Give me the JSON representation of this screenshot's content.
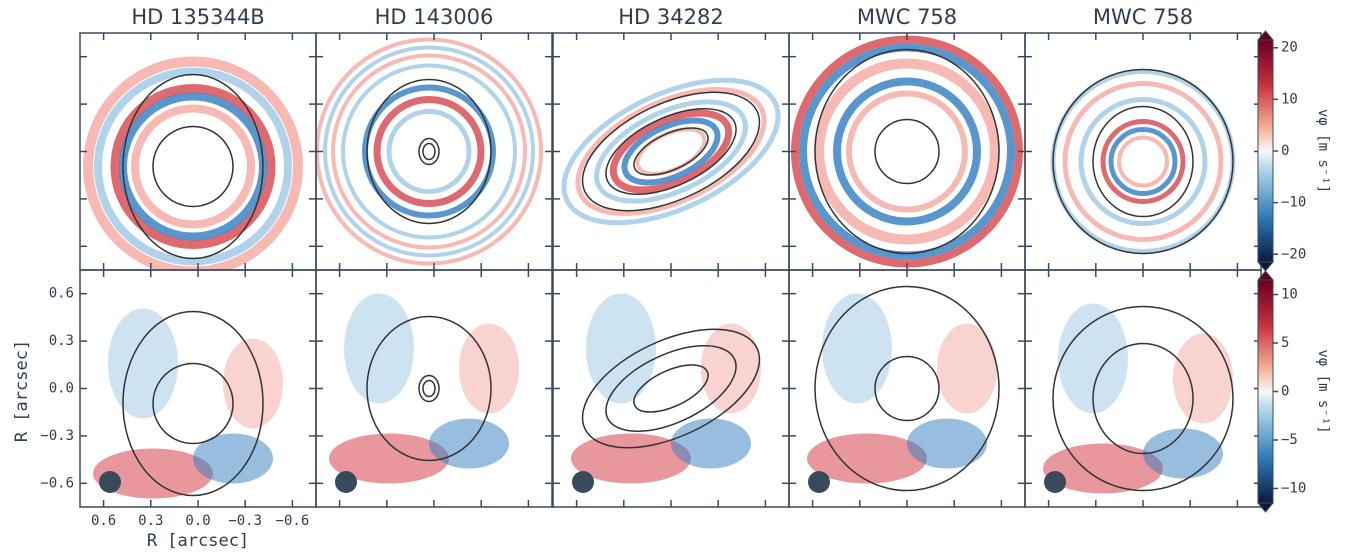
{
  "figure": {
    "panel_titles": [
      "HD 135344B",
      "HD 143006",
      "HD 34282",
      "MWC 758",
      "MWC 758"
    ],
    "xlabel": "R [arcsec]",
    "ylabel": "R [arcsec]",
    "xlim": [
      0.75,
      -0.75
    ],
    "ylim": [
      -0.75,
      0.75
    ],
    "xticks": [
      0.6,
      0.3,
      {
        "value": 0,
        "label": "0.0"
      },
      {
        "value": -0.3,
        "label": "−0.3"
      },
      {
        "value": -0.6,
        "label": "−0.6"
      }
    ],
    "yticks": [
      0.6,
      0.3,
      {
        "value": 0,
        "label": "0.0"
      },
      {
        "value": -0.3,
        "label": "−0.3"
      },
      {
        "value": -0.6,
        "label": "−0.6"
      }
    ],
    "colorbars": [
      {
        "label": "vφ [m s⁻¹]",
        "lim": [
          -21.5,
          21.5
        ],
        "ticks": [
          20,
          10,
          0,
          {
            "value": -10,
            "label": "−10"
          },
          {
            "value": -20,
            "label": "−20"
          }
        ]
      },
      {
        "label": "vφ [m s⁻¹]",
        "lim": [
          -11.5,
          11.5
        ],
        "ticks": [
          10,
          5,
          0,
          {
            "value": -5,
            "label": "−5"
          },
          {
            "value": -10,
            "label": "−10"
          }
        ]
      }
    ]
  }
}
